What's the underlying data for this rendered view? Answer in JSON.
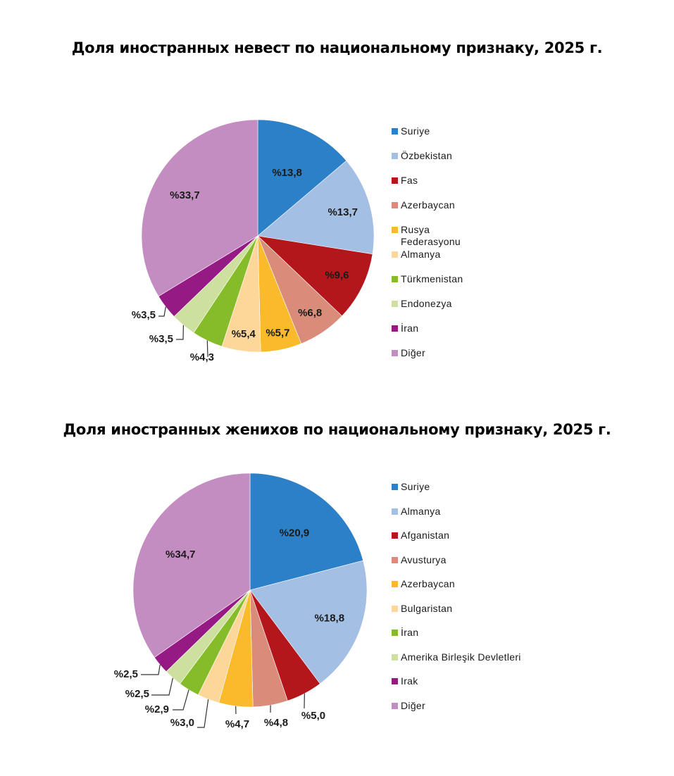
{
  "chart_data": [
    {
      "type": "pie",
      "title": "Доля иностранных невест по национальному признаку, 2025 г.",
      "legend_position": "right",
      "label_format": "%{value}",
      "categories": [
        "Suriye",
        "Özbekistan",
        "Fas",
        "Azerbaycan",
        "Rusya Federasyonu",
        "Almanya",
        "Türkmenistan",
        "Endonezya",
        "İran",
        "Diğer"
      ],
      "values": [
        13.8,
        13.7,
        9.6,
        6.8,
        5.7,
        5.4,
        4.3,
        3.5,
        3.5,
        33.7
      ],
      "labels": [
        "%13,8",
        "%13,7",
        "%9,6",
        "%6,8",
        "%5,7",
        "%5,4",
        "%4,3",
        "%3,5",
        "%3,5",
        "%33,7"
      ],
      "colors": [
        "#2c80c8",
        "#a3bfe3",
        "#b4171b",
        "#d98c7a",
        "#fbb92c",
        "#fdd79a",
        "#86bb2a",
        "#cde0a0",
        "#961a84",
        "#c48dc1"
      ]
    },
    {
      "type": "pie",
      "title": "Доля иностранных женихов по национальному признаку, 2025 г.",
      "legend_position": "right",
      "label_format": "%{value}",
      "categories": [
        "Suriye",
        "Almanya",
        "Afganistan",
        "Avusturya",
        "Azerbaycan",
        "Bulgaristan",
        "İran",
        "Amerika Birleşik Devletleri",
        "Irak",
        "Diğer"
      ],
      "values": [
        20.9,
        18.8,
        5.0,
        4.8,
        4.7,
        3.0,
        2.9,
        2.5,
        2.5,
        34.7
      ],
      "labels": [
        "%20,9",
        "%18,8",
        "%5,0",
        "%4,8",
        "%4,7",
        "%3,0",
        "%2,9",
        "%2,5",
        "%2,5",
        "%34,7"
      ],
      "colors": [
        "#2c80c8",
        "#a3bfe3",
        "#b4171b",
        "#d98c7a",
        "#fbb92c",
        "#fdd79a",
        "#86bb2a",
        "#cde0a0",
        "#961a84",
        "#c48dc1"
      ]
    }
  ],
  "titles": {
    "brides": "Доля иностранных невест по национальному признаку, 2025 г.",
    "grooms": "Доля иностранных женихов по национальному признаку, 2025 г."
  }
}
